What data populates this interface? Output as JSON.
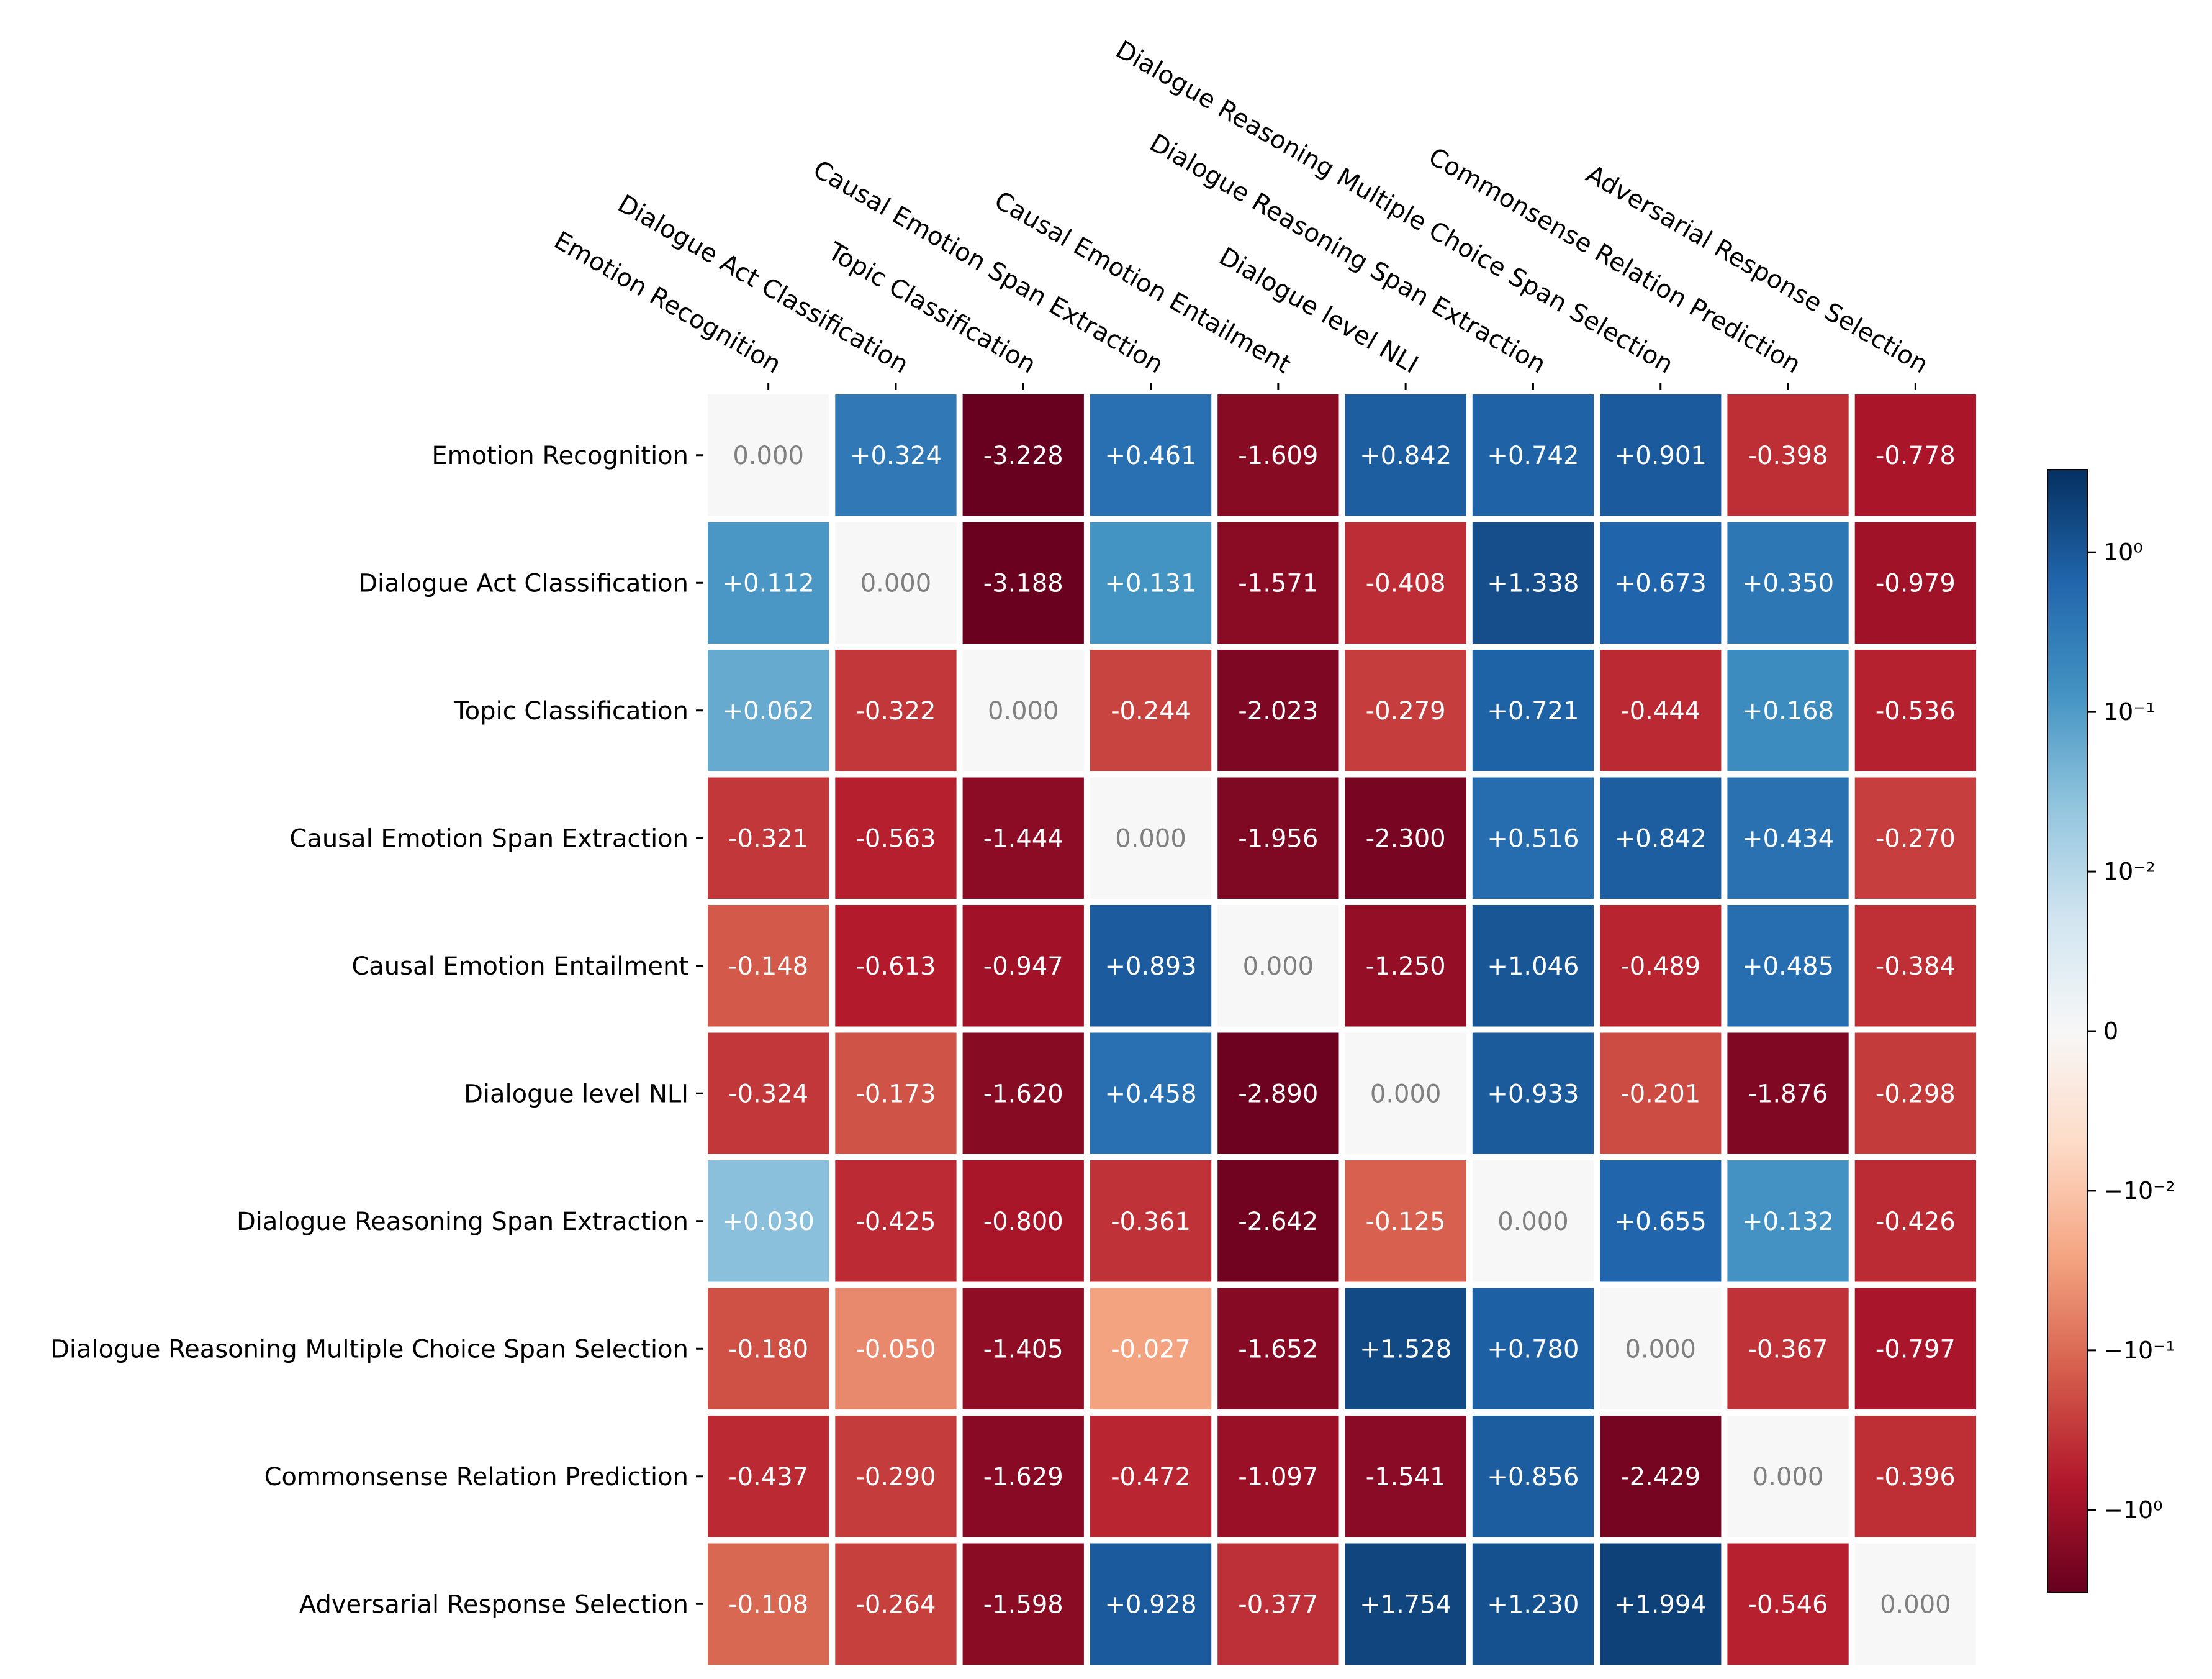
{
  "chart_data": {
    "type": "heatmap",
    "title": "",
    "xlabel": "",
    "ylabel": "",
    "colorscale": "RdBu (symlog)",
    "color_range": [
      -3.3,
      3.3
    ],
    "colorbar": {
      "position": "right",
      "ticks": [
        {
          "value": 1,
          "label": "10⁰"
        },
        {
          "value": 0.1,
          "label": "10⁻¹"
        },
        {
          "value": 0.01,
          "label": "10⁻²"
        },
        {
          "value": 0,
          "label": "0"
        },
        {
          "value": -0.01,
          "label": "−10⁻²"
        },
        {
          "value": -0.1,
          "label": "−10⁻¹"
        },
        {
          "value": -1,
          "label": "−10⁰"
        }
      ]
    },
    "rows": [
      "Emotion Recognition",
      "Dialogue Act Classification",
      "Topic Classification",
      "Causal Emotion Span Extraction",
      "Causal Emotion Entailment",
      "Dialogue level NLI",
      "Dialogue Reasoning Span Extraction",
      "Dialogue Reasoning Multiple Choice Span Selection",
      "Commonsense Relation Prediction",
      "Adversarial Response Selection"
    ],
    "columns": [
      "Emotion Recognition",
      "Dialogue Act Classification",
      "Topic Classification",
      "Causal Emotion Span Extraction",
      "Causal Emotion Entailment",
      "Dialogue level NLI",
      "Dialogue Reasoning Span Extraction",
      "Dialogue Reasoning Multiple Choice Span Selection",
      "Commonsense Relation Prediction",
      "Adversarial Response Selection"
    ],
    "values": [
      [
        0.0,
        0.324,
        -3.228,
        0.461,
        -1.609,
        0.842,
        0.742,
        0.901,
        -0.398,
        -0.778
      ],
      [
        0.112,
        0.0,
        -3.188,
        0.131,
        -1.571,
        -0.408,
        1.338,
        0.673,
        0.35,
        -0.979
      ],
      [
        0.062,
        -0.322,
        0.0,
        -0.244,
        -2.023,
        -0.279,
        0.721,
        -0.444,
        0.168,
        -0.536
      ],
      [
        -0.321,
        -0.563,
        -1.444,
        0.0,
        -1.956,
        -2.3,
        0.516,
        0.842,
        0.434,
        -0.27
      ],
      [
        -0.148,
        -0.613,
        -0.947,
        0.893,
        0.0,
        -1.25,
        1.046,
        -0.489,
        0.485,
        -0.384
      ],
      [
        -0.324,
        -0.173,
        -1.62,
        0.458,
        -2.89,
        0.0,
        0.933,
        -0.201,
        -1.876,
        -0.298
      ],
      [
        0.03,
        -0.425,
        -0.8,
        -0.361,
        -2.642,
        -0.125,
        0.0,
        0.655,
        0.132,
        -0.426
      ],
      [
        -0.18,
        -0.05,
        -1.405,
        -0.027,
        -1.652,
        1.528,
        0.78,
        0.0,
        -0.367,
        -0.797
      ],
      [
        -0.437,
        -0.29,
        -1.629,
        -0.472,
        -1.097,
        -1.541,
        0.856,
        -2.429,
        0.0,
        -0.396
      ],
      [
        -0.108,
        -0.264,
        -1.598,
        0.928,
        -0.377,
        1.754,
        1.23,
        1.994,
        -0.546,
        0.0
      ]
    ],
    "labels": [
      [
        "0.000",
        "+0.324",
        "-3.228",
        "+0.461",
        "-1.609",
        "+0.842",
        "+0.742",
        "+0.901",
        "-0.398",
        "-0.778"
      ],
      [
        "+0.112",
        "0.000",
        "-3.188",
        "+0.131",
        "-1.571",
        "-0.408",
        "+1.338",
        "+0.673",
        "+0.350",
        "-0.979"
      ],
      [
        "+0.062",
        "-0.322",
        "0.000",
        "-0.244",
        "-2.023",
        "-0.279",
        "+0.721",
        "-0.444",
        "+0.168",
        "-0.536"
      ],
      [
        "-0.321",
        "-0.563",
        "-1.444",
        "0.000",
        "-1.956",
        "-2.300",
        "+0.516",
        "+0.842",
        "+0.434",
        "-0.270"
      ],
      [
        "-0.148",
        "-0.613",
        "-0.947",
        "+0.893",
        "0.000",
        "-1.250",
        "+1.046",
        "-0.489",
        "+0.485",
        "-0.384"
      ],
      [
        "-0.324",
        "-0.173",
        "-1.620",
        "+0.458",
        "-2.890",
        "0.000",
        "+0.933",
        "-0.201",
        "-1.876",
        "-0.298"
      ],
      [
        "+0.030",
        "-0.425",
        "-0.800",
        "-0.361",
        "-2.642",
        "-0.125",
        "0.000",
        "+0.655",
        "+0.132",
        "-0.426"
      ],
      [
        "-0.180",
        "-0.050",
        "-1.405",
        "-0.027",
        "-1.652",
        "+1.528",
        "+0.780",
        "0.000",
        "-0.367",
        "-0.797"
      ],
      [
        "-0.437",
        "-0.290",
        "-1.629",
        "-0.472",
        "-1.097",
        "-1.541",
        "+0.856",
        "-2.429",
        "0.000",
        "-0.396"
      ],
      [
        "-0.108",
        "-0.264",
        "-1.598",
        "+0.928",
        "-0.377",
        "+1.754",
        "+1.230",
        "+1.994",
        "-0.546",
        "0.000"
      ]
    ]
  }
}
